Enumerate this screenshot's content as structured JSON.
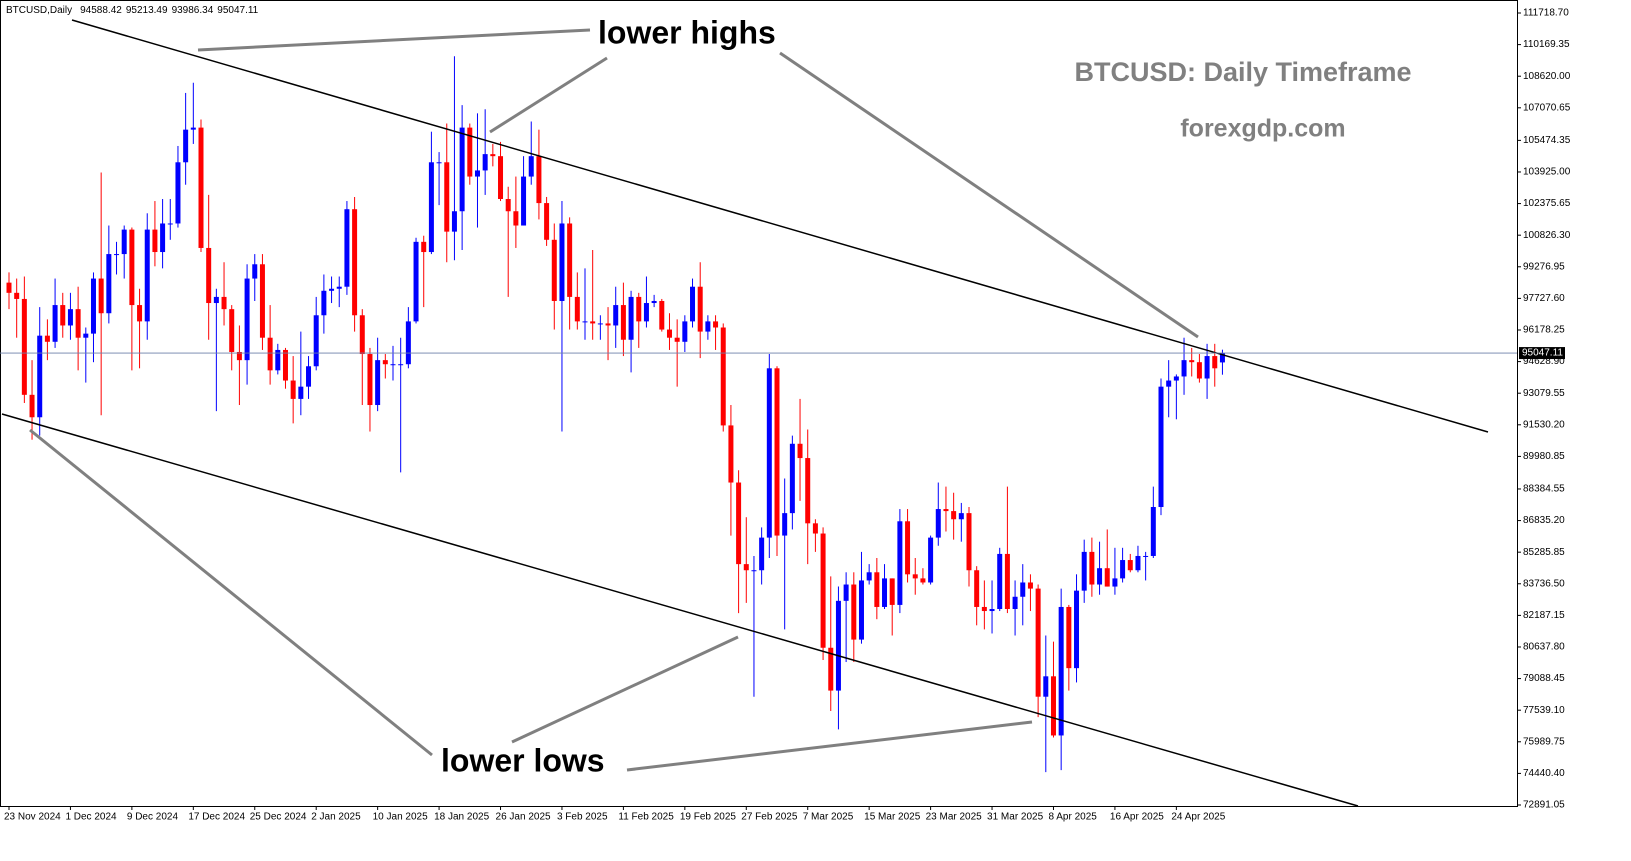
{
  "chart_data": {
    "type": "candlestick",
    "symbol": "BTCUSD,Daily",
    "title": "BTCUSD: Daily Timeframe",
    "subtitle": "forexgdp.com",
    "annotations": [
      "lower highs",
      "lower lows"
    ],
    "up_color": "#0000ff",
    "down_color": "#ff0000",
    "categories": [
      "23 Nov 2024",
      null,
      null,
      null,
      null,
      null,
      null,
      null,
      "1 Dec 2024",
      null,
      null,
      null,
      null,
      null,
      null,
      null,
      "9 Dec 2024",
      null,
      null,
      null,
      null,
      null,
      null,
      null,
      "17 Dec 2024",
      null,
      null,
      null,
      null,
      null,
      null,
      null,
      "25 Dec 2024",
      null,
      null,
      null,
      null,
      null,
      null,
      null,
      "2 Jan 2025",
      null,
      null,
      null,
      null,
      null,
      null,
      null,
      "10 Jan 2025",
      null,
      null,
      null,
      null,
      null,
      null,
      null,
      "18 Jan 2025",
      null,
      null,
      null,
      null,
      null,
      null,
      null,
      "26 Jan 2025",
      null,
      null,
      null,
      null,
      null,
      null,
      null,
      "3 Feb 2025",
      null,
      null,
      null,
      null,
      null,
      null,
      null,
      "11 Feb 2025",
      null,
      null,
      null,
      null,
      null,
      null,
      null,
      "19 Feb 2025",
      null,
      null,
      null,
      null,
      null,
      null,
      null,
      "27 Feb 2025",
      null,
      null,
      null,
      null,
      null,
      null,
      null,
      "7 Mar 2025",
      null,
      null,
      null,
      null,
      null,
      null,
      null,
      "15 Mar 2025",
      null,
      null,
      null,
      null,
      null,
      null,
      null,
      "23 Mar 2025",
      null,
      null,
      null,
      null,
      null,
      null,
      null,
      "31 Mar 2025",
      null,
      null,
      null,
      null,
      null,
      null,
      null,
      "8 Apr 2025",
      null,
      null,
      null,
      null,
      null,
      null,
      null,
      "16 Apr 2025",
      null,
      null,
      null,
      null,
      null,
      null,
      null,
      "24 Apr 2025",
      null,
      null,
      null,
      null,
      null,
      null
    ],
    "open": [
      98500,
      98000,
      97700,
      93000,
      91900,
      95900,
      95600,
      97400,
      96400,
      97200,
      95800,
      96000,
      98700,
      97000,
      99900,
      99900,
      101100,
      97400,
      96600,
      101100,
      100000,
      101400,
      101400,
      104400,
      106000,
      106100,
      100200,
      97500,
      97800,
      97200,
      95100,
      94700,
      98700,
      99400,
      95800,
      94200,
      95200,
      93700,
      92800,
      93400,
      94400,
      96900,
      98100,
      98200,
      98300,
      102100,
      96900,
      95000,
      92500,
      94700,
      94500,
      94500,
      94500,
      96600,
      100500,
      100000,
      104400,
      104400,
      101000,
      102000,
      106100,
      103700,
      104000,
      104800,
      104700,
      102600,
      102000,
      101300,
      103700,
      104700,
      102400,
      100600,
      97600,
      101400,
      97800,
      96600,
      96600,
      96500,
      96500,
      96400,
      97400,
      95700,
      97800,
      96600,
      97500,
      97600,
      96200,
      95800,
      95600,
      96600,
      98300,
      96100,
      96600,
      96300,
      91500,
      88700,
      84700,
      84400,
      84400,
      86000,
      94300,
      86100,
      87200,
      90600,
      89900,
      86700,
      86200,
      80600,
      78500,
      82900,
      83700,
      81000,
      83900,
      84300,
      82600,
      84000,
      82700,
      86800,
      84200,
      84000,
      83800,
      86000,
      87400,
      87300,
      86900,
      87200,
      84400,
      82600,
      82400,
      82500,
      85200,
      82500,
      83100,
      83800,
      83500,
      78200,
      79200,
      76300,
      82600,
      79600,
      83400,
      85300,
      83700,
      84500,
      83600,
      84000,
      84900,
      84400,
      85100,
      85100,
      87500,
      93400,
      93700,
      93900,
      94700,
      94600,
      93800,
      94900,
      94588.42
    ],
    "high": [
      99000,
      98700,
      98800,
      94700,
      97300,
      96700,
      98700,
      98000,
      98000,
      98300,
      96300,
      99000,
      103900,
      101300,
      100500,
      101300,
      101200,
      98200,
      101900,
      102500,
      102600,
      102600,
      105200,
      107800,
      108300,
      106500,
      102800,
      98200,
      99500,
      97400,
      96400,
      99400,
      99900,
      99900,
      97400,
      95500,
      95300,
      94900,
      96100,
      94900,
      97800,
      98900,
      98800,
      98800,
      102500,
      102700,
      97200,
      95300,
      95800,
      95000,
      95400,
      95800,
      97300,
      100700,
      100800,
      105900,
      104900,
      106300,
      109600,
      107200,
      106300,
      106800,
      107000,
      105300,
      105400,
      103200,
      103700,
      104700,
      106400,
      106000,
      102700,
      101400,
      102500,
      101700,
      99000,
      99200,
      100100,
      96900,
      97300,
      98300,
      98500,
      98100,
      98000,
      98800,
      97900,
      97700,
      97000,
      96700,
      96900,
      98700,
      99500,
      96900,
      96900,
      96500,
      92500,
      89300,
      87000,
      85100,
      86500,
      95000,
      94400,
      88900,
      91000,
      92800,
      91300,
      86900,
      86500,
      84100,
      83600,
      84300,
      84300,
      85300,
      84700,
      85000,
      84700,
      84000,
      87400,
      87400,
      85000,
      84500,
      86100,
      88700,
      88500,
      88200,
      87700,
      87500,
      84600,
      83900,
      83900,
      85500,
      88500,
      83900,
      84700,
      84200,
      83700,
      81200,
      80900,
      83500,
      82700,
      84200,
      85900,
      86000,
      85800,
      86400,
      85500,
      85500,
      85200,
      85600,
      85300,
      88500,
      93800,
      94700,
      94000,
      95800,
      95300,
      95000,
      95500,
      95500,
      95213.49
    ],
    "low": [
      97200,
      95800,
      92600,
      90800,
      91000,
      94700,
      95300,
      95800,
      95700,
      94200,
      93600,
      94600,
      92000,
      96500,
      98900,
      98700,
      94200,
      94300,
      95700,
      99300,
      99200,
      100600,
      101200,
      103300,
      105300,
      100000,
      95700,
      92200,
      96400,
      94200,
      92500,
      93500,
      97600,
      95200,
      93500,
      94000,
      93300,
      91600,
      92000,
      92800,
      94200,
      96000,
      97500,
      97300,
      97900,
      96100,
      92500,
      91200,
      92200,
      93800,
      93700,
      89200,
      94300,
      96500,
      97300,
      99900,
      102300,
      99500,
      99600,
      100100,
      103300,
      101200,
      102800,
      104200,
      102500,
      97800,
      100200,
      101300,
      103300,
      101600,
      100300,
      96200,
      91200,
      96200,
      96200,
      95700,
      95700,
      95700,
      94700,
      95300,
      94900,
      94100,
      95300,
      96300,
      97300,
      96100,
      95200,
      93400,
      95100,
      96300,
      94800,
      95700,
      95200,
      91200,
      86100,
      82300,
      82800,
      78200,
      83700,
      85000,
      85100,
      81500,
      86400,
      87800,
      84700,
      85300,
      80000,
      77500,
      76600,
      79900,
      79900,
      80800,
      83700,
      82000,
      82500,
      81200,
      82300,
      83800,
      83200,
      83700,
      83700,
      85600,
      86300,
      85900,
      85800,
      83600,
      81700,
      81500,
      81300,
      82400,
      82300,
      81200,
      81700,
      82400,
      77200,
      74500,
      76200,
      74600,
      78500,
      78900,
      82800,
      83100,
      83200,
      83600,
      83200,
      83800,
      84300,
      84300,
      83900,
      85000,
      87100,
      91900,
      91800,
      93000,
      93900,
      93600,
      92800,
      93400,
      93986.34
    ],
    "close": [
      98000,
      97700,
      93000,
      91900,
      95900,
      95600,
      97400,
      96400,
      97200,
      95800,
      96000,
      98700,
      97000,
      99900,
      99900,
      101100,
      97400,
      96600,
      101100,
      100000,
      101400,
      101400,
      104400,
      106000,
      106100,
      100200,
      97500,
      97800,
      97200,
      95100,
      94700,
      98700,
      99400,
      95800,
      94200,
      95200,
      93700,
      92800,
      93400,
      94400,
      96900,
      98100,
      98200,
      98300,
      102100,
      96900,
      95000,
      92500,
      94700,
      94500,
      94500,
      94500,
      96600,
      100500,
      100000,
      104400,
      104400,
      101000,
      102000,
      106100,
      103700,
      104000,
      104800,
      104700,
      102600,
      102000,
      101300,
      103700,
      104700,
      102400,
      100600,
      97600,
      101400,
      97800,
      96600,
      96600,
      96500,
      96500,
      96400,
      97400,
      95700,
      97800,
      96600,
      97500,
      97600,
      96200,
      95800,
      95600,
      96600,
      98300,
      96100,
      96600,
      96300,
      91500,
      88700,
      84700,
      84400,
      84400,
      86000,
      94300,
      86100,
      87200,
      90600,
      89900,
      86700,
      86200,
      80600,
      78500,
      82900,
      83700,
      81000,
      83900,
      84300,
      82600,
      84000,
      82700,
      86800,
      84200,
      84000,
      83800,
      86000,
      87400,
      87300,
      86900,
      87200,
      84400,
      82600,
      82400,
      82500,
      85200,
      82500,
      83100,
      83800,
      83500,
      78200,
      79200,
      76300,
      82600,
      79600,
      83400,
      85300,
      83700,
      84500,
      83600,
      84000,
      84900,
      84400,
      85100,
      85100,
      87500,
      93400,
      93700,
      93900,
      94700,
      94600,
      93800,
      94900,
      94300,
      95047.11
    ],
    "ylim": [
      72842,
      112209
    ],
    "yticks": [
      {
        "value": 111718.7,
        "label": "111718.70"
      },
      {
        "value": 110169.35,
        "label": "110169.35"
      },
      {
        "value": 108620,
        "label": "108620.00"
      },
      {
        "value": 107070.65,
        "label": "107070.65"
      },
      {
        "value": 105474.35,
        "label": "105474.35"
      },
      {
        "value": 103925,
        "label": "103925.00"
      },
      {
        "value": 102375.65,
        "label": "102375.65"
      },
      {
        "value": 100826.3,
        "label": "100826.30"
      },
      {
        "value": 99276.95,
        "label": "99276.95"
      },
      {
        "value": 97727.6,
        "label": "97727.60"
      },
      {
        "value": 96178.25,
        "label": "96178.25"
      },
      {
        "value": 94628.9,
        "label": "94628.90"
      },
      {
        "value": 93079.55,
        "label": "93079.55"
      },
      {
        "value": 91530.2,
        "label": "91530.20"
      },
      {
        "value": 89980.85,
        "label": "89980.85"
      },
      {
        "value": 88384.55,
        "label": "88384.55"
      },
      {
        "value": 86835.2,
        "label": "86835.20"
      },
      {
        "value": 85285.85,
        "label": "85285.85"
      },
      {
        "value": 83736.5,
        "label": "83736.50"
      },
      {
        "value": 82187.15,
        "label": "82187.15"
      },
      {
        "value": 80637.8,
        "label": "80637.80"
      },
      {
        "value": 79088.45,
        "label": "79088.45"
      },
      {
        "value": 77539.1,
        "label": "77539.10"
      },
      {
        "value": 75989.75,
        "label": "75989.75"
      },
      {
        "value": 74440.4,
        "label": "74440.40"
      },
      {
        "value": 72891.05,
        "label": "72891.05"
      }
    ]
  }
}
